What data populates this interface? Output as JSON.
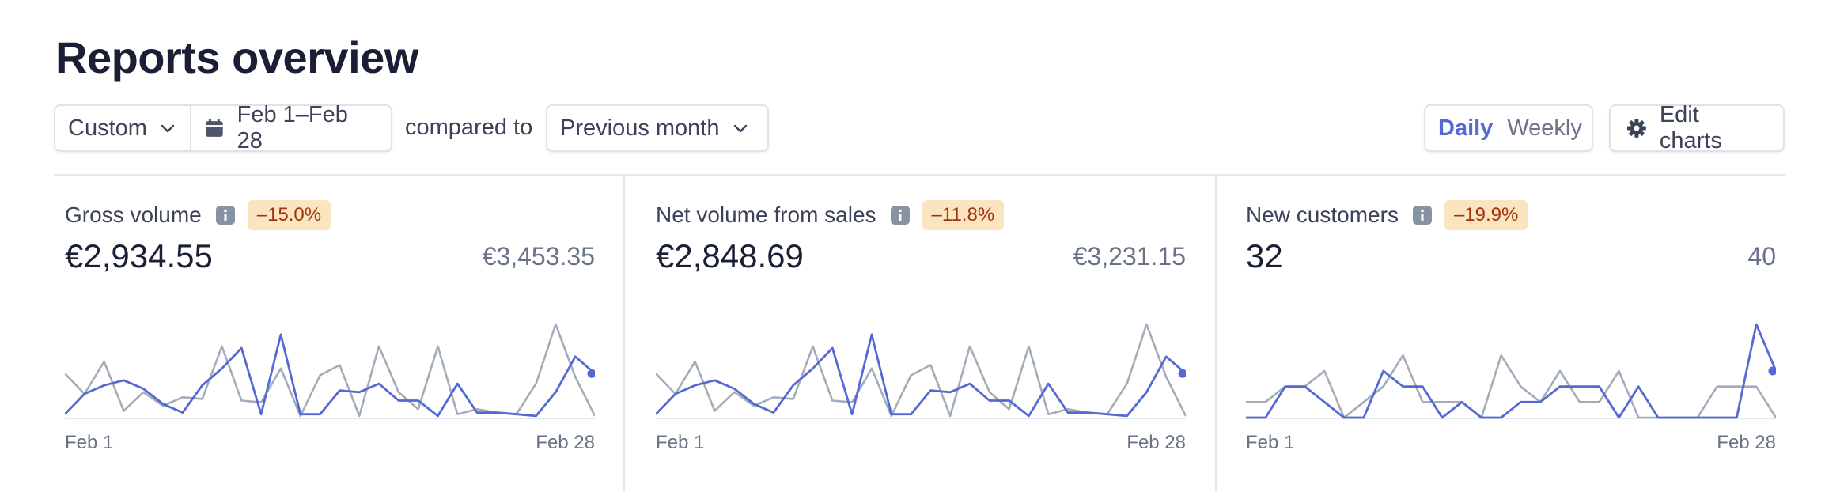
{
  "page": {
    "title": "Reports overview"
  },
  "filters": {
    "range_type": "Custom",
    "date_range": "Feb 1–Feb 28",
    "compared_label": "compared to",
    "comparison": "Previous month"
  },
  "period_toggle": {
    "daily": "Daily",
    "weekly": "Weekly",
    "selected": "Daily"
  },
  "edit_label": "Edit charts",
  "colors": {
    "current": "#5469d4",
    "previous": "#a3acb9",
    "accent": "#5469d4",
    "badge_bg": "#fbe5c0",
    "badge_text": "#a3320b"
  },
  "icons": [
    "chevron-down-icon",
    "calendar-icon",
    "gear-icon",
    "info-icon"
  ],
  "cards": [
    {
      "title": "Gross volume",
      "change": "–15.0%",
      "value": "€2,934.55",
      "previous_value": "€3,453.35",
      "start_label": "Feb 1",
      "end_label": "Feb 28",
      "current": [
        2,
        14,
        19,
        22,
        17,
        8,
        3,
        19,
        29,
        41,
        2,
        49,
        2,
        2,
        16,
        15,
        20,
        10,
        10,
        1,
        20,
        3,
        3,
        2,
        1,
        15,
        36,
        26
      ],
      "previous": [
        26,
        14,
        33,
        4,
        15,
        7,
        12,
        11,
        42,
        10,
        9,
        29,
        1,
        25,
        31,
        1,
        42,
        15,
        5,
        42,
        2,
        5,
        3,
        2,
        20,
        55,
        24,
        1
      ]
    },
    {
      "title": "Net volume from sales",
      "change": "–11.8%",
      "value": "€2,848.69",
      "previous_value": "€3,231.15",
      "start_label": "Feb 1",
      "end_label": "Feb 28",
      "current": [
        2,
        14,
        19,
        22,
        17,
        8,
        3,
        19,
        29,
        41,
        2,
        49,
        2,
        2,
        16,
        15,
        20,
        10,
        10,
        1,
        20,
        3,
        3,
        2,
        1,
        15,
        36,
        26
      ],
      "previous": [
        26,
        14,
        33,
        4,
        15,
        7,
        12,
        11,
        42,
        10,
        9,
        29,
        1,
        25,
        31,
        1,
        42,
        15,
        5,
        42,
        2,
        5,
        3,
        2,
        20,
        55,
        24,
        1
      ]
    },
    {
      "title": "New customers",
      "change": "–19.9%",
      "value": "32",
      "previous_value": "40",
      "start_label": "Feb 1",
      "end_label": "Feb 28",
      "current": [
        0,
        0,
        2,
        2,
        1,
        0,
        0,
        3,
        2,
        2,
        0,
        1,
        0,
        0,
        1,
        1,
        2,
        2,
        2,
        0,
        2,
        0,
        0,
        0,
        0,
        0,
        6,
        3
      ],
      "previous": [
        1,
        1,
        2,
        2,
        3,
        0,
        1,
        2,
        4,
        1,
        1,
        1,
        0,
        4,
        2,
        1,
        3,
        1,
        1,
        3,
        0,
        0,
        0,
        0,
        2,
        2,
        2,
        0
      ]
    }
  ]
}
